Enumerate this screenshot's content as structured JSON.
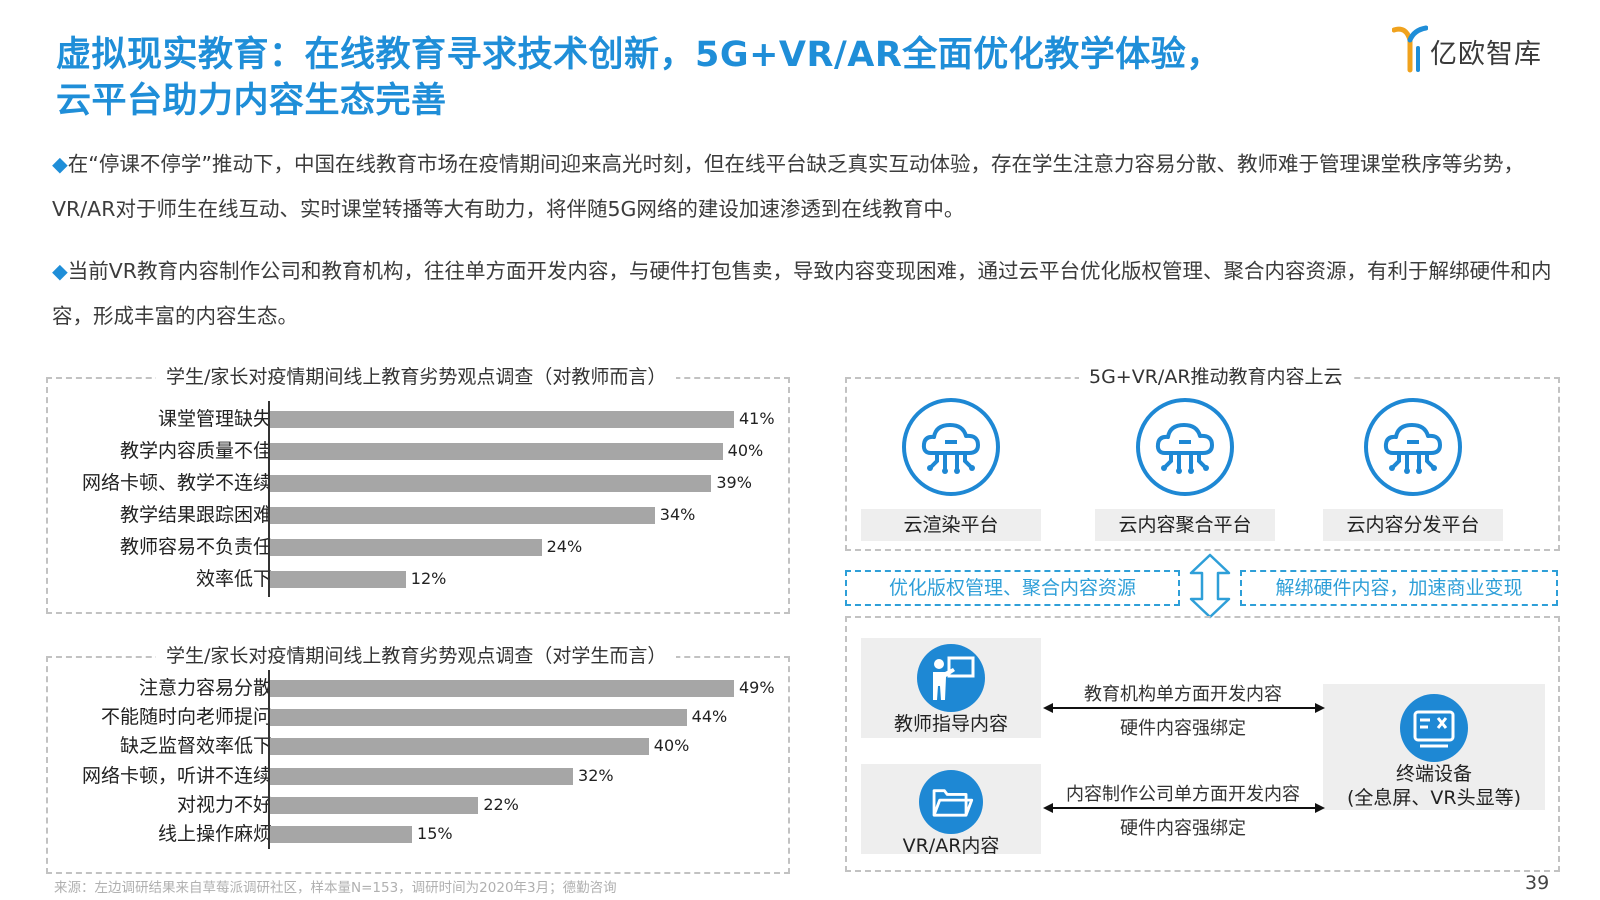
{
  "page": {
    "title_line1": "虚拟现实教育：在线教育寻求技术创新，5G+VR/AR全面优化教学体验，",
    "title_line2": "云平台助力内容生态完善",
    "logo_text": "亿欧智库",
    "paragraphs": [
      "在“停课不停学”推动下，中国在线教育市场在疫情期间迎来高光时刻，但在线平台缺乏真实互动体验，存在学生注意力容易分散、教师难于管理课堂秩序等劣势，VR/AR对于师生在线互动、实时课堂转播等大有助力，将伴随5G网络的建设加速渗透到在线教育中。",
      "当前VR教育内容制作公司和教育机构，往往单方面开发内容，与硬件打包售卖，导致内容变现困难，通过云平台优化版权管理、聚合内容资源，有利于解绑硬件和内容，形成丰富的内容生态。"
    ],
    "bullet": "◆",
    "source": "来源：左边调研结果来自草莓派调研社区，样本量N=153，调研时间为2020年3月；德勤咨询",
    "page_number": "39"
  },
  "chart_data": [
    {
      "type": "bar",
      "orientation": "horizontal",
      "title": "学生/家长对疫情期间线上教育劣势观点调查（对教师而言）",
      "categories": [
        "课堂管理缺失",
        "教学内容质量不佳",
        "网络卡顿、教学不连续",
        "教学结果跟踪困难",
        "教师容易不负责任",
        "效率低下"
      ],
      "values": [
        41,
        40,
        39,
        34,
        24,
        12
      ],
      "value_labels": [
        "41%",
        "40%",
        "39%",
        "34%",
        "24%",
        "12%"
      ],
      "unit": "%",
      "xlim": [
        0,
        41
      ],
      "color": "#a6a6a6"
    },
    {
      "type": "bar",
      "orientation": "horizontal",
      "title": "学生/家长对疫情期间线上教育劣势观点调查（对学生而言）",
      "categories": [
        "注意力容易分散",
        "不能随时向老师提问",
        "缺乏监督效率低下",
        "网络卡顿，听讲不连续",
        "对视力不好",
        "线上操作麻烦"
      ],
      "values": [
        49,
        44,
        40,
        32,
        22,
        15
      ],
      "value_labels": [
        "49%",
        "44%",
        "40%",
        "32%",
        "22%",
        "15%"
      ],
      "unit": "%",
      "xlim": [
        0,
        49
      ],
      "color": "#a6a6a6"
    }
  ],
  "diagram": {
    "title": "5G+VR/AR推动教育内容上云",
    "platforms": [
      "云渲染平台",
      "云内容聚合平台",
      "云内容分发平台"
    ],
    "tag_left": "优化版权管理、聚合内容资源",
    "tag_right": "解绑硬件内容，加速商业变现",
    "teacher_box": "教师指导内容",
    "vrar_box": "VR/AR内容",
    "device_box_line1": "终端设备",
    "device_box_line2": "(全息屏、VR头显等)",
    "flow1_top": "教育机构单方面开发内容",
    "flow1_bottom": "硬件内容强绑定",
    "flow2_top": "内容制作公司单方面开发内容",
    "flow2_bottom": "硬件内容强绑定",
    "colors": {
      "accent": "#1f8ed8",
      "icon": "#1e88d4"
    },
    "icons": [
      "cloud-computing-icon",
      "teacher-board-icon",
      "folder-icon",
      "terminal-device-icon"
    ]
  }
}
